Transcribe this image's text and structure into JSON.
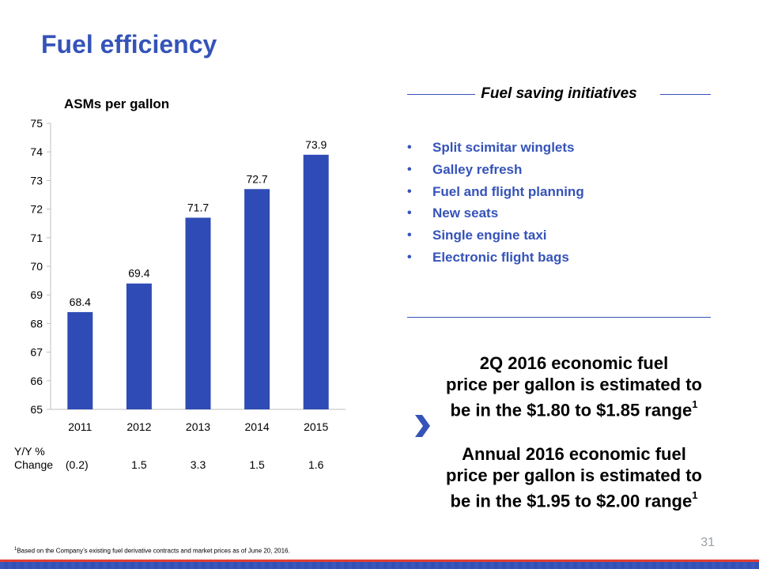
{
  "page": {
    "title": "Fuel efficiency",
    "page_number": "31",
    "footnote_marker": "1",
    "footnote": "Based on the Company’s existing fuel derivative contracts and market prices as of June 20, 2016."
  },
  "colors": {
    "accent": "#3553b8",
    "bar": "#2f4bb5",
    "red_stripe": "#e43d30"
  },
  "chart_data": {
    "type": "bar",
    "title": "ASMs per gallon",
    "categories": [
      "2011",
      "2012",
      "2013",
      "2014",
      "2015"
    ],
    "values": [
      68.4,
      69.4,
      71.7,
      72.7,
      73.9
    ],
    "data_labels": [
      "68.4",
      "69.4",
      "71.7",
      "72.7",
      "73.9"
    ],
    "xlabel": "",
    "ylabel": "",
    "ylim": [
      65,
      75
    ],
    "yticks": [
      65,
      66,
      67,
      68,
      69,
      70,
      71,
      72,
      73,
      74,
      75
    ],
    "grid": false,
    "legend": "none"
  },
  "yoy": {
    "label_line1": "Y/Y %",
    "label_line2": "Change",
    "values": [
      "(0.2)",
      "1.5",
      "3.3",
      "1.5",
      "1.6"
    ]
  },
  "initiatives": {
    "title": "Fuel saving initiatives",
    "items": [
      "Split scimitar winglets",
      "Galley refresh",
      "Fuel and flight planning",
      "New seats",
      "Single engine taxi",
      "Electronic flight bags"
    ]
  },
  "estimates": {
    "icon": "chevron-right-icon",
    "q2_line1": "2Q 2016 economic fuel",
    "q2_line2": "price per gallon is estimated to",
    "q2_line3": "be in the $1.80 to $1.85 range",
    "annual_line1": "Annual 2016 economic fuel",
    "annual_line2": "price per gallon is estimated to",
    "annual_line3": "be in the $1.95  to $2.00 range",
    "footnote_ref": "1"
  }
}
